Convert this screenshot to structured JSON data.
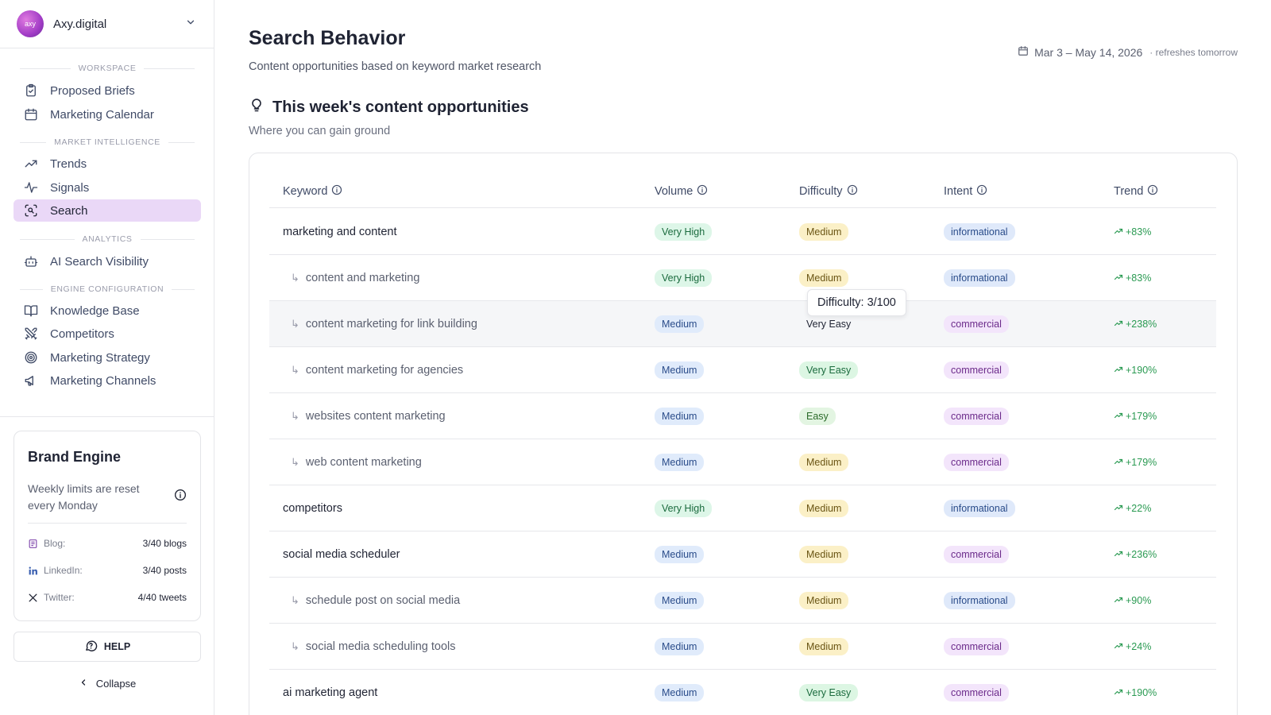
{
  "org": {
    "name": "Axy.digital",
    "avatar_text": "axy"
  },
  "nav": {
    "workspace_label": "WORKSPACE",
    "proposed_briefs": "Proposed Briefs",
    "marketing_calendar": "Marketing Calendar",
    "market_intel_label": "MARKET INTELLIGENCE",
    "trends": "Trends",
    "signals": "Signals",
    "search": "Search",
    "analytics_label": "ANALYTICS",
    "ai_search_visibility": "AI Search Visibility",
    "engine_config_label": "ENGINE CONFIGURATION",
    "knowledge_base": "Knowledge Base",
    "competitors": "Competitors",
    "marketing_strategy": "Marketing Strategy",
    "marketing_channels": "Marketing Channels"
  },
  "brand_engine": {
    "title": "Brand Engine",
    "subtitle": "Weekly limits are reset every Monday",
    "blog_label": "Blog:",
    "blog_value": "3/40 blogs",
    "linkedin_label": "LinkedIn:",
    "linkedin_value": "3/40 posts",
    "twitter_label": "Twitter:",
    "twitter_value": "4/40 tweets"
  },
  "help_label": "HELP",
  "collapse_label": "Collapse",
  "header": {
    "title": "Search Behavior",
    "subtitle": "Content opportunities based on keyword market research",
    "date_range": "Mar 3 – May 14, 2026",
    "refresh_note": "· refreshes tomorrow"
  },
  "section": {
    "title": "This week's content opportunities",
    "subtitle": "Where you can gain ground"
  },
  "table": {
    "columns": {
      "keyword": "Keyword",
      "volume": "Volume",
      "difficulty": "Difficulty",
      "intent": "Intent",
      "trend": "Trend"
    },
    "rows": [
      {
        "keyword": "marketing and content",
        "child": false,
        "volume": "Very High",
        "difficulty": "Medium",
        "intent": "informational",
        "trend": "+83%"
      },
      {
        "keyword": "content and marketing",
        "child": true,
        "volume": "Very High",
        "difficulty": "Medium",
        "intent": "informational",
        "trend": "+83%"
      },
      {
        "keyword": "content marketing for link building",
        "child": true,
        "volume": "Medium",
        "difficulty": "Very Easy",
        "intent": "commercial",
        "trend": "+238%"
      },
      {
        "keyword": "content marketing for agencies",
        "child": true,
        "volume": "Medium",
        "difficulty": "Very Easy",
        "intent": "commercial",
        "trend": "+190%"
      },
      {
        "keyword": "websites content marketing",
        "child": true,
        "volume": "Medium",
        "difficulty": "Easy",
        "intent": "commercial",
        "trend": "+179%"
      },
      {
        "keyword": "web content marketing",
        "child": true,
        "volume": "Medium",
        "difficulty": "Medium",
        "intent": "commercial",
        "trend": "+179%"
      },
      {
        "keyword": "competitors",
        "child": false,
        "volume": "Very High",
        "difficulty": "Medium",
        "intent": "informational",
        "trend": "+22%"
      },
      {
        "keyword": "social media scheduler",
        "child": false,
        "volume": "Medium",
        "difficulty": "Medium",
        "intent": "commercial",
        "trend": "+236%"
      },
      {
        "keyword": "schedule post on social media",
        "child": true,
        "volume": "Medium",
        "difficulty": "Medium",
        "intent": "informational",
        "trend": "+90%"
      },
      {
        "keyword": "social media scheduling tools",
        "child": true,
        "volume": "Medium",
        "difficulty": "Medium",
        "intent": "commercial",
        "trend": "+24%"
      },
      {
        "keyword": "ai marketing agent",
        "child": false,
        "volume": "Medium",
        "difficulty": "Very Easy",
        "intent": "commercial",
        "trend": "+190%"
      }
    ],
    "tooltip": "Difficulty: 3/100"
  },
  "colors": {
    "accent": "#ead8f7",
    "trend_green": "#2a9a52"
  }
}
